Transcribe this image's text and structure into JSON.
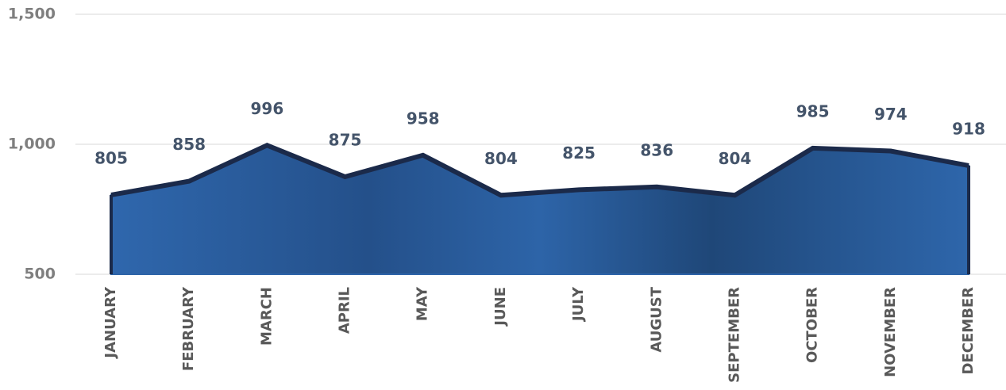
{
  "chart_data": {
    "type": "area",
    "categories": [
      "JANUARY",
      "FEBRUARY",
      "MARCH",
      "APRIL",
      "MAY",
      "JUNE",
      "JULY",
      "AUGUST",
      "SEPTEMBER",
      "OCTOBER",
      "NOVEMBER",
      "DECEMBER"
    ],
    "values": [
      805,
      858,
      996,
      875,
      958,
      804,
      825,
      836,
      804,
      985,
      974,
      918
    ],
    "color": "#2e64a8",
    "line_color": "#1b2a4a",
    "ylim": [
      500,
      1500
    ],
    "yticks": [
      500,
      {
        "value": 1000,
        "label": "1,000"
      },
      {
        "value": 1500,
        "label": "1,500"
      }
    ],
    "grid": true
  }
}
